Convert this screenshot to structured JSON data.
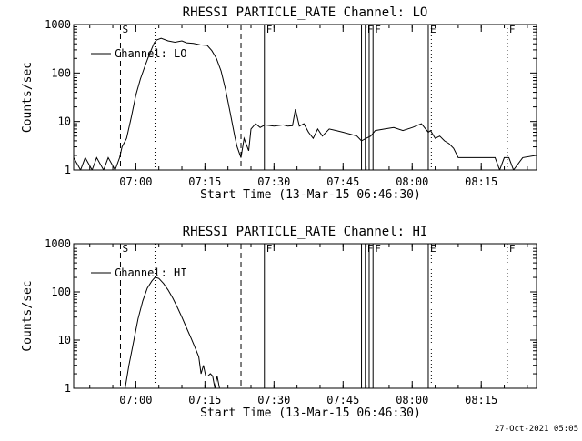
{
  "footer": {
    "timestamp": "27-Oct-2021 05:05"
  },
  "chart_data": [
    {
      "type": "line",
      "title": "RHESSI PARTICLE_RATE Channel: LO",
      "xlabel": "Start Time (13-Mar-15 06:46:30)",
      "ylabel": "Counts/sec",
      "yscale": "log",
      "xlim": [
        "06:46:30",
        "08:27:00"
      ],
      "ylim": [
        1,
        1000
      ],
      "xticks": [
        "07:00",
        "07:15",
        "07:30",
        "07:45",
        "08:00",
        "08:15"
      ],
      "yticks": [
        "1",
        "10",
        "100",
        "1000"
      ],
      "legend": {
        "entry": "Channel: LO",
        "placement": "top-left"
      },
      "markers": [
        {
          "label": "S",
          "time": "06:56:40",
          "style": "dashed"
        },
        {
          "label": "",
          "time": "07:04:10",
          "style": "dotted"
        },
        {
          "label": "",
          "time": "07:22:50",
          "style": "dashed"
        },
        {
          "label": "F",
          "time": "07:27:55",
          "style": "solid"
        },
        {
          "label": "",
          "time": "07:49:00",
          "style": "solid"
        },
        {
          "label": "",
          "time": "07:49:50",
          "style": "solid"
        },
        {
          "label": "",
          "time": "07:50:40",
          "style": "solid"
        },
        {
          "label": "",
          "time": "07:51:30",
          "style": "solid"
        },
        {
          "label": "F",
          "time": "07:49:50",
          "style": "text"
        },
        {
          "label": "F",
          "time": "07:51:30",
          "style": "text"
        },
        {
          "label": "E",
          "time": "08:03:30",
          "style": "solid"
        },
        {
          "label": "",
          "time": "08:04:10",
          "style": "dotted"
        },
        {
          "label": "",
          "time": "08:20:40",
          "style": "dotted"
        },
        {
          "label": "F",
          "time": "08:20:40",
          "style": "text"
        }
      ],
      "series": [
        {
          "name": "Channel: LO",
          "x": [
            "06:46:30",
            "06:48:00",
            "06:49:00",
            "06:50:30",
            "06:51:30",
            "06:53:00",
            "06:54:00",
            "06:55:30",
            "06:56:30",
            "06:57:00",
            "06:58:00",
            "06:59:00",
            "07:00:00",
            "07:01:00",
            "07:02:00",
            "07:03:00",
            "07:04:00",
            "07:04:30",
            "07:05:30",
            "07:07:00",
            "07:08:30",
            "07:10:00",
            "07:11:00",
            "07:12:30",
            "07:14:00",
            "07:15:30",
            "07:16:30",
            "07:17:30",
            "07:18:30",
            "07:19:30",
            "07:20:30",
            "07:21:30",
            "07:22:00",
            "07:22:50",
            "07:23:30",
            "07:24:30",
            "07:25:00",
            "07:26:00",
            "07:27:00",
            "07:28:00",
            "07:30:00",
            "07:32:00",
            "07:33:00",
            "07:34:00",
            "07:34:40",
            "07:35:30",
            "07:36:30",
            "07:37:30",
            "07:38:30",
            "07:39:30",
            "07:40:30",
            "07:42:00",
            "07:43:30",
            "07:45:00",
            "07:46:30",
            "07:48:00",
            "07:49:00",
            "07:50:00",
            "07:51:00",
            "07:52:00",
            "07:54:00",
            "07:56:00",
            "07:58:00",
            "08:00:00",
            "08:02:00",
            "08:03:30",
            "08:04:00",
            "08:05:00",
            "08:06:00",
            "08:07:00",
            "08:08:00",
            "08:09:00",
            "08:10:00",
            "08:12:00",
            "08:14:00",
            "08:16:00",
            "08:17:00",
            "08:18:00",
            "08:19:00",
            "08:20:00",
            "08:21:00",
            "08:22:00",
            "08:24:00",
            "08:27:00"
          ],
          "y": [
            1.8,
            1,
            1.8,
            1,
            1.8,
            1,
            1.8,
            1,
            1.8,
            3,
            4.5,
            12,
            35,
            75,
            140,
            250,
            420,
            480,
            520,
            460,
            430,
            460,
            420,
            410,
            380,
            370,
            290,
            200,
            110,
            45,
            15,
            4.8,
            3,
            1.8,
            4.5,
            2.5,
            7,
            9,
            7.5,
            8.5,
            8,
            8.5,
            8,
            8.2,
            18,
            8,
            9,
            6,
            4.5,
            7,
            5,
            7,
            6.5,
            6,
            5.5,
            5,
            4,
            4.5,
            5,
            6.5,
            7,
            7.5,
            6.5,
            7.5,
            9,
            6,
            6.5,
            4.5,
            5,
            4,
            3.5,
            2.8,
            1.8,
            1.8,
            1.8,
            1.8,
            1.8,
            1.8,
            1,
            1.8,
            1.8,
            1,
            1.8,
            2
          ]
        }
      ]
    },
    {
      "type": "line",
      "title": "RHESSI PARTICLE_RATE Channel: HI",
      "xlabel": "Start Time (13-Mar-15 06:46:30)",
      "ylabel": "Counts/sec",
      "yscale": "log",
      "xlim": [
        "06:46:30",
        "08:27:00"
      ],
      "ylim": [
        1,
        1000
      ],
      "xticks": [
        "07:00",
        "07:15",
        "07:30",
        "07:45",
        "08:00",
        "08:15"
      ],
      "yticks": [
        "1",
        "10",
        "100",
        "1000"
      ],
      "legend": {
        "entry": "Channel: HI",
        "placement": "top-left"
      },
      "markers": [
        {
          "label": "S",
          "time": "06:56:40",
          "style": "dashed"
        },
        {
          "label": "",
          "time": "07:04:10",
          "style": "dotted"
        },
        {
          "label": "",
          "time": "07:22:50",
          "style": "dashed"
        },
        {
          "label": "F",
          "time": "07:27:55",
          "style": "solid"
        },
        {
          "label": "",
          "time": "07:49:00",
          "style": "solid"
        },
        {
          "label": "",
          "time": "07:49:50",
          "style": "solid"
        },
        {
          "label": "",
          "time": "07:50:40",
          "style": "solid"
        },
        {
          "label": "",
          "time": "07:51:30",
          "style": "solid"
        },
        {
          "label": "F",
          "time": "07:49:50",
          "style": "text"
        },
        {
          "label": "F",
          "time": "07:51:30",
          "style": "text"
        },
        {
          "label": "E",
          "time": "08:03:30",
          "style": "solid"
        },
        {
          "label": "",
          "time": "08:04:10",
          "style": "dotted"
        },
        {
          "label": "",
          "time": "08:20:40",
          "style": "dotted"
        },
        {
          "label": "F",
          "time": "08:20:40",
          "style": "text"
        }
      ],
      "series": [
        {
          "name": "Channel: HI",
          "x": [
            "06:57:40",
            "06:58:30",
            "06:59:30",
            "07:00:30",
            "07:01:30",
            "07:02:30",
            "07:03:30",
            "07:04:10",
            "07:05:00",
            "07:06:00",
            "07:07:00",
            "07:08:00",
            "07:09:00",
            "07:10:00",
            "07:11:00",
            "07:12:00",
            "07:13:00",
            "07:13:40",
            "07:14:10",
            "07:14:40",
            "07:15:10",
            "07:15:40",
            "07:16:10",
            "07:16:40",
            "07:17:10",
            "07:17:40",
            "07:18:10"
          ],
          "y": [
            1,
            3,
            9,
            28,
            65,
            120,
            170,
            200,
            190,
            150,
            110,
            75,
            48,
            30,
            18,
            11,
            6.5,
            4.5,
            2,
            3,
            1.8,
            1.8,
            2,
            1.8,
            1,
            1.8,
            1
          ]
        }
      ]
    }
  ]
}
